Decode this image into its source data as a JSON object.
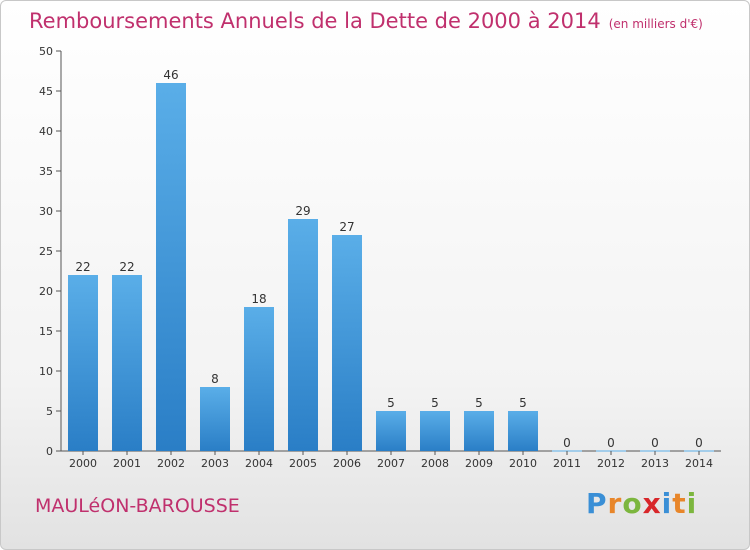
{
  "header": {
    "title": "Remboursements Annuels de la Dette de 2000 à 2014",
    "unit": "(en milliers d'€)"
  },
  "footer": {
    "commune": "MAULéON-BAROUSSE",
    "logo_text": "Proxiti"
  },
  "colors": {
    "accent": "#c0306d",
    "bar_light": "#5aaee8",
    "bar_dark": "#2a7ec6"
  },
  "chart_data": {
    "type": "bar",
    "categories": [
      "2000",
      "2001",
      "2002",
      "2003",
      "2004",
      "2005",
      "2006",
      "2007",
      "2008",
      "2009",
      "2010",
      "2011",
      "2012",
      "2013",
      "2014"
    ],
    "values": [
      22,
      22,
      46,
      8,
      18,
      29,
      27,
      5,
      5,
      5,
      5,
      0,
      0,
      0,
      0
    ],
    "ylim": [
      0,
      50
    ],
    "yticks": [
      0,
      5,
      10,
      15,
      20,
      25,
      30,
      35,
      40,
      45,
      50
    ],
    "grid": false,
    "legend": "none"
  }
}
